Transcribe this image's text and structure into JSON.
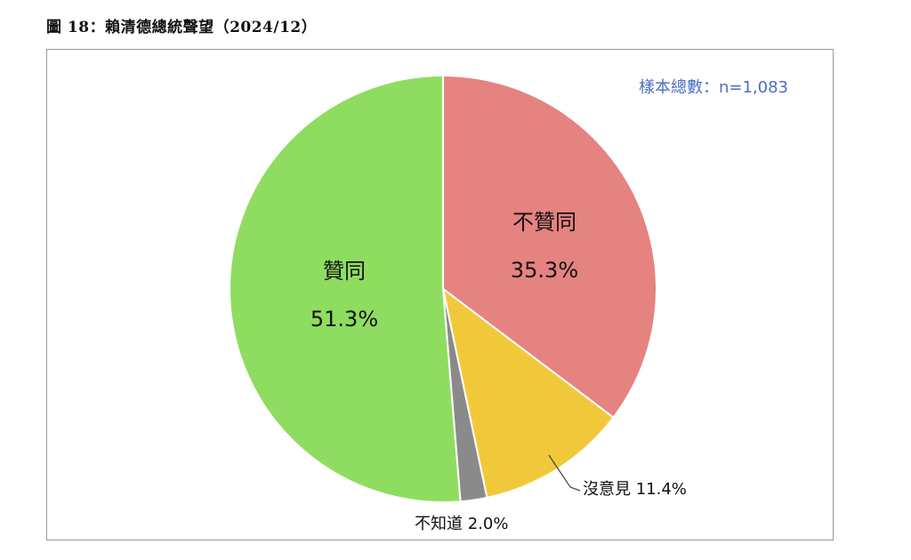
{
  "figure": {
    "title": "圖 18：賴清德總統聲望（2024/12）"
  },
  "chart_data": {
    "type": "pie",
    "title": "",
    "annotation": "樣本總數：n=1,083",
    "slices": [
      {
        "label": "不贊同",
        "value": 35.3,
        "value_label": "35.3%",
        "color": "#e58381"
      },
      {
        "label": "沒意見",
        "value": 11.4,
        "value_label": "11.4%",
        "color": "#f2c83b"
      },
      {
        "label": "不知道",
        "value": 2.0,
        "value_label": "2.0%",
        "color": "#8a8a8a"
      },
      {
        "label": "贊同",
        "value": 51.3,
        "value_label": "51.3%",
        "color": "#8fdd60"
      }
    ],
    "start_angle": "12 o'clock",
    "direction": "clockwise",
    "legend": "none"
  }
}
